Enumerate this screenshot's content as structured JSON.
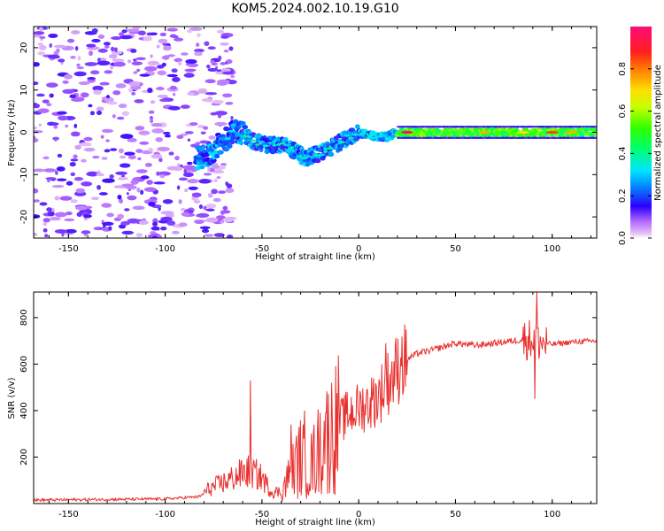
{
  "title": "KOM5.2024.002.10.19.G10",
  "chart_data": [
    {
      "type": "heatmap",
      "xlabel": "Height of straight line (km)",
      "ylabel": "Frequency (Hz)",
      "xlim": [
        -168,
        123
      ],
      "ylim": [
        -25,
        25
      ],
      "xticks": [
        -150,
        -100,
        -50,
        0,
        50,
        100
      ],
      "yticks": [
        -20,
        -10,
        0,
        10,
        20
      ],
      "xtick_labels": [
        "-150",
        "-100",
        "-50",
        "0",
        "50",
        "100"
      ],
      "ytick_labels": [
        "-20",
        "-10",
        "0",
        "10",
        "20"
      ],
      "colorbar": {
        "label": "Normalized spectral amplitude",
        "range": [
          0,
          1
        ],
        "ticks": [
          0.0,
          0.2,
          0.4,
          0.6,
          0.8
        ],
        "tick_labels": [
          "0.0",
          "0.2",
          "0.4",
          "0.6",
          "0.8"
        ],
        "colormap": "gist_rainbow_r"
      },
      "ridge": {
        "description_points": [
          [
            -80,
            -6
          ],
          [
            -72,
            -3
          ],
          [
            -65,
            0
          ],
          [
            -60,
            0
          ],
          [
            -55,
            -2
          ],
          [
            -48,
            -3
          ],
          [
            -40,
            -3
          ],
          [
            -35,
            -4
          ],
          [
            -28,
            -6
          ],
          [
            -20,
            -5
          ],
          [
            -12,
            -3
          ],
          [
            -5,
            -1
          ],
          [
            0,
            0
          ],
          [
            8,
            -1
          ],
          [
            15,
            -1
          ],
          [
            20,
            0
          ],
          [
            30,
            0
          ],
          [
            60,
            0
          ],
          [
            90,
            0
          ],
          [
            123,
            0
          ]
        ],
        "noise_region_x": [
          -168,
          -80
        ],
        "amplitude_hotspots": [
          [
            25,
            0,
            0.95
          ],
          [
            65,
            0,
            0.75
          ],
          [
            85,
            0,
            0.7
          ],
          [
            100,
            0,
            0.85
          ],
          [
            110,
            0,
            0.75
          ]
        ]
      }
    },
    {
      "type": "line",
      "xlabel": "Height of straight line (km)",
      "ylabel": "SNR (v/v)",
      "xlim": [
        -168,
        123
      ],
      "ylim": [
        0,
        910
      ],
      "xticks": [
        -150,
        -100,
        -50,
        0,
        50,
        100
      ],
      "yticks": [
        200,
        400,
        600,
        800
      ],
      "xtick_labels": [
        "-150",
        "-100",
        "-50",
        "0",
        "50",
        "100"
      ],
      "ytick_labels": [
        "200",
        "400",
        "600",
        "800"
      ],
      "color": "#e8302f",
      "envelope": [
        [
          -168,
          15
        ],
        [
          -100,
          20
        ],
        [
          -82,
          30
        ],
        [
          -78,
          60
        ],
        [
          -70,
          90
        ],
        [
          -60,
          130
        ],
        [
          -56,
          140
        ],
        [
          -50,
          110
        ],
        [
          -45,
          50
        ],
        [
          -40,
          50
        ],
        [
          -35,
          130
        ],
        [
          -30,
          200
        ],
        [
          -25,
          160
        ],
        [
          -20,
          240
        ],
        [
          -15,
          300
        ],
        [
          -10,
          350
        ],
        [
          -5,
          390
        ],
        [
          0,
          410
        ],
        [
          5,
          430
        ],
        [
          10,
          460
        ],
        [
          15,
          520
        ],
        [
          20,
          580
        ],
        [
          25,
          620
        ],
        [
          30,
          645
        ],
        [
          40,
          665
        ],
        [
          50,
          690
        ],
        [
          60,
          680
        ],
        [
          70,
          690
        ],
        [
          80,
          700
        ],
        [
          90,
          710
        ],
        [
          95,
          690
        ],
        [
          100,
          685
        ],
        [
          110,
          695
        ],
        [
          123,
          700
        ]
      ],
      "spikes": [
        [
          -56,
          530
        ],
        [
          -35,
          340
        ],
        [
          -28,
          400
        ],
        [
          -17,
          390
        ],
        [
          14,
          690
        ],
        [
          22,
          590
        ],
        [
          92,
          910
        ],
        [
          91,
          450
        ]
      ]
    }
  ]
}
